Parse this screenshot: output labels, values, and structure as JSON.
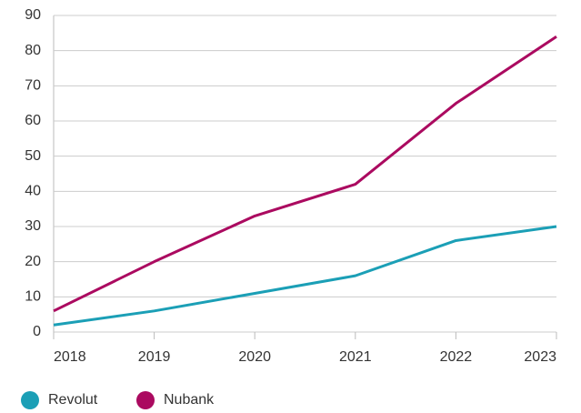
{
  "chart_data": {
    "type": "line",
    "categories": [
      "2018",
      "2019",
      "2020",
      "2021",
      "2022",
      "2023"
    ],
    "series": [
      {
        "name": "Revolut",
        "color": "#1b9fb6",
        "values": [
          2,
          6,
          11,
          16,
          26,
          30
        ]
      },
      {
        "name": "Nubank",
        "color": "#ab0a60",
        "values": [
          6,
          20,
          33,
          42,
          65,
          84
        ]
      }
    ],
    "ylim": [
      0,
      90
    ],
    "yticks": [
      0,
      10,
      20,
      30,
      40,
      50,
      60,
      70,
      80,
      90
    ],
    "grid": true,
    "legend": "bottom"
  }
}
